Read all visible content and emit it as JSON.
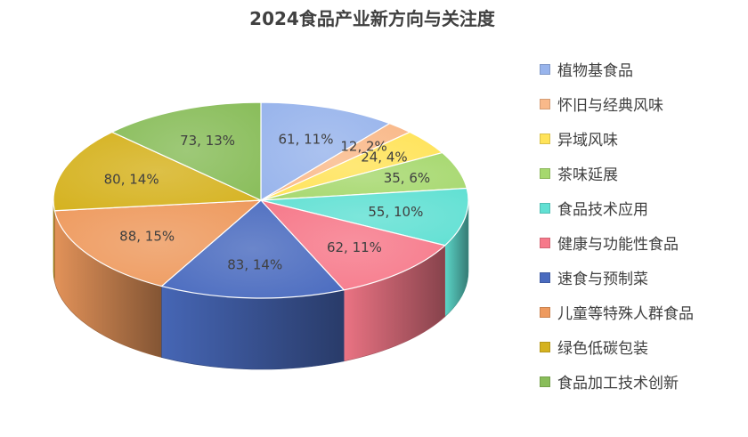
{
  "chart_data": {
    "type": "pie",
    "title": "2024食品产业新方向与关注度",
    "legend_position": "right",
    "slices": [
      {
        "name": "植物基食品",
        "value": 61,
        "percent": "11%",
        "color": "#98B4EC"
      },
      {
        "name": "怀旧与经典风味",
        "value": 12,
        "percent": "2%",
        "color": "#F9B98A"
      },
      {
        "name": "异域风味",
        "value": 24,
        "percent": "4%",
        "color": "#FFE359"
      },
      {
        "name": "茶味延展",
        "value": 35,
        "percent": "6%",
        "color": "#A6D86E"
      },
      {
        "name": "食品技术应用",
        "value": 55,
        "percent": "10%",
        "color": "#61E0D3"
      },
      {
        "name": "健康与功能性食品",
        "value": 62,
        "percent": "11%",
        "color": "#F6798A"
      },
      {
        "name": "速食与预制菜",
        "value": 83,
        "percent": "14%",
        "color": "#4A6BBF"
      },
      {
        "name": "儿童等特殊人群食品",
        "value": 88,
        "percent": "15%",
        "color": "#EE9A5E"
      },
      {
        "name": "绿色低碳包装",
        "value": 80,
        "percent": "14%",
        "color": "#D5B21F"
      },
      {
        "name": "食品加工技术创新",
        "value": 73,
        "percent": "13%",
        "color": "#89BD5A"
      }
    ]
  }
}
